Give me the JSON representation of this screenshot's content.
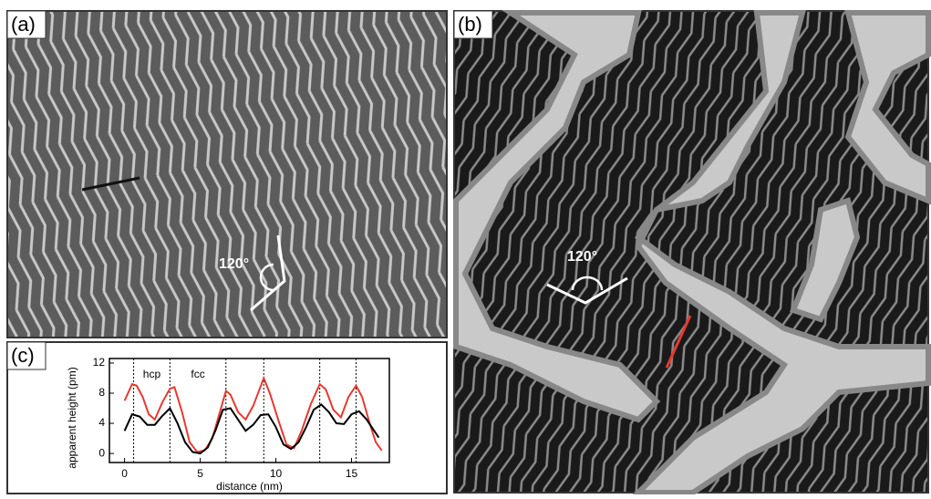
{
  "panel_labels": [
    "(a)",
    "(b)",
    "(c)"
  ],
  "angle_labels": [
    "120°",
    "120°"
  ],
  "chart_data": {
    "type": "line",
    "xlabel": "distance (nm)",
    "ylabel": "apparent height (pm)",
    "xlim": [
      -1,
      17.5
    ],
    "ylim": [
      -1.2,
      12.6
    ],
    "xticks": [
      0,
      5,
      10,
      15
    ],
    "yticks": [
      0,
      4,
      8,
      12
    ],
    "vlines": [
      0.6,
      3.0,
      6.7,
      9.2,
      12.9,
      15.3
    ],
    "annotations": [
      "hcp",
      "fcc"
    ],
    "series": [
      {
        "color": "#e8392f",
        "x": [
          0,
          0.5,
          0.8,
          1.2,
          1.6,
          2,
          2.5,
          3,
          3.3,
          3.8,
          4.3,
          4.8,
          5.3,
          5.8,
          6.3,
          6.7,
          7,
          7.5,
          8,
          8.5,
          9.2,
          9.6,
          10.2,
          10.7,
          11.2,
          11.7,
          12.3,
          12.9,
          13.3,
          13.8,
          14.3,
          14.8,
          15.3,
          15.7,
          16.2,
          16.6,
          17
        ],
        "values": [
          7,
          9.2,
          9.0,
          7.5,
          5.2,
          4.5,
          6.8,
          8.6,
          8.8,
          5.5,
          1.5,
          0.2,
          0.4,
          2,
          5.5,
          8.3,
          7.8,
          5.5,
          4.5,
          6.3,
          10,
          8,
          4.2,
          1.2,
          0.7,
          3.0,
          6.5,
          9.2,
          8.5,
          5.8,
          4.8,
          7.5,
          9.0,
          7.5,
          4.0,
          1.5,
          0.4
        ]
      },
      {
        "color": "#000000",
        "x": [
          0,
          0.5,
          1,
          1.5,
          2,
          2.5,
          3,
          3.5,
          4,
          4.5,
          5,
          5.5,
          6,
          6.5,
          7,
          7.5,
          8,
          8.5,
          9,
          9.5,
          10,
          10.5,
          11,
          11.5,
          12,
          12.5,
          13,
          13.5,
          14,
          14.5,
          15,
          15.5,
          16,
          16.5,
          16.8
        ],
        "values": [
          3,
          5.2,
          4.9,
          3.8,
          3.8,
          5,
          6,
          4,
          1.5,
          0.2,
          0,
          0.8,
          3,
          5.8,
          6,
          4.5,
          3.0,
          3.8,
          5.1,
          5.2,
          3.5,
          1.2,
          0.6,
          1.5,
          3.5,
          5.8,
          6.5,
          5.5,
          4.0,
          3.9,
          5.2,
          5.6,
          4.5,
          3,
          2.1
        ]
      }
    ]
  }
}
